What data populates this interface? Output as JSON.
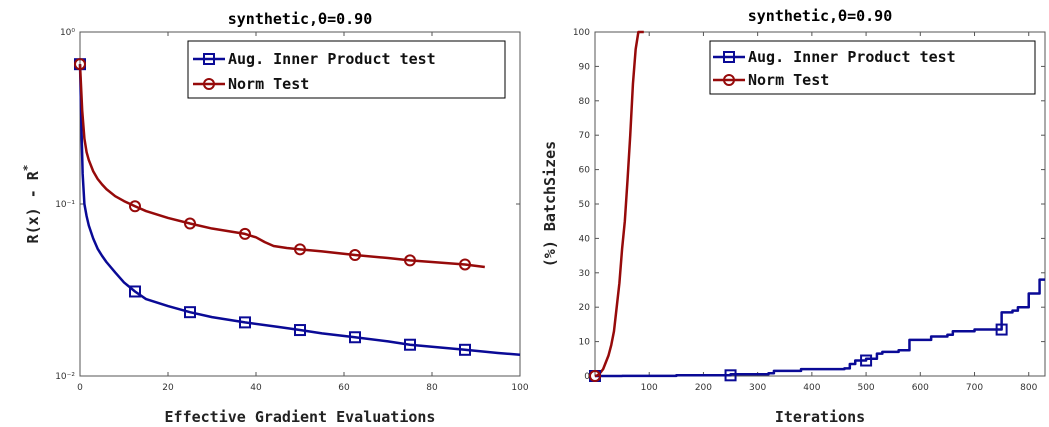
{
  "chart_data": [
    {
      "type": "line",
      "title": "synthetic,θ=0.90",
      "xlabel": "Effective Gradient Evaluations",
      "ylabel": "R(x) - R*",
      "xlim": [
        0,
        100
      ],
      "ylim": [
        0.01,
        1
      ],
      "yscale": "log",
      "xticks": [
        0,
        20,
        40,
        60,
        80,
        100
      ],
      "yticks": [
        0.01,
        0.1,
        1
      ],
      "ytick_labels": [
        "10⁻²",
        "10⁻¹",
        "10⁰"
      ],
      "grid": false,
      "legend_position": "top-right",
      "series": [
        {
          "name": "Aug. Inner Product test",
          "color": "#0a0a96",
          "marker": "square",
          "x": [
            0,
            0.3,
            0.6,
            1,
            1.5,
            2,
            3,
            4,
            5,
            6,
            8,
            10,
            12.5,
            15,
            20,
            25,
            30,
            37.5,
            45,
            50,
            55,
            62.5,
            70,
            75,
            80,
            87.5,
            95,
            100
          ],
          "y": [
            0.65,
            0.3,
            0.15,
            0.1,
            0.085,
            0.075,
            0.063,
            0.055,
            0.05,
            0.046,
            0.04,
            0.035,
            0.031,
            0.028,
            0.0255,
            0.0235,
            0.022,
            0.0205,
            0.0193,
            0.0185,
            0.0177,
            0.0168,
            0.0159,
            0.0152,
            0.0148,
            0.0142,
            0.0136,
            0.0133
          ],
          "marker_x": [
            0,
            12.5,
            25,
            37.5,
            50,
            62.5,
            75,
            87.5
          ]
        },
        {
          "name": "Norm Test",
          "color": "#960a0a",
          "marker": "circle",
          "x": [
            0,
            0.5,
            1,
            1.5,
            2,
            3,
            4,
            5,
            6,
            8,
            10,
            12.5,
            15,
            20,
            25,
            30,
            37.5,
            40,
            42,
            44,
            47,
            50,
            55,
            62.5,
            70,
            75,
            80,
            87.5,
            92
          ],
          "y": [
            0.65,
            0.35,
            0.24,
            0.2,
            0.18,
            0.155,
            0.14,
            0.13,
            0.122,
            0.111,
            0.104,
            0.097,
            0.091,
            0.083,
            0.077,
            0.072,
            0.067,
            0.064,
            0.06,
            0.057,
            0.0555,
            0.0545,
            0.053,
            0.0505,
            0.0485,
            0.047,
            0.046,
            0.0445,
            0.043
          ],
          "marker_x": [
            0,
            12.5,
            25,
            37.5,
            50,
            62.5,
            75,
            87.5
          ]
        }
      ]
    },
    {
      "type": "line",
      "title": "synthetic,θ=0.90",
      "xlabel": "Iterations",
      "ylabel": "(%) BatchSizes",
      "xlim": [
        0,
        830
      ],
      "ylim": [
        0,
        100
      ],
      "xticks": [
        100,
        200,
        300,
        400,
        500,
        600,
        700,
        800
      ],
      "yticks": [
        0,
        10,
        20,
        30,
        40,
        50,
        60,
        70,
        80,
        90,
        100
      ],
      "grid": false,
      "legend_position": "top-right",
      "series": [
        {
          "name": "Aug. Inner Product test",
          "color": "#0a0a96",
          "marker": "square",
          "step": true,
          "x": [
            0,
            50,
            150,
            250,
            320,
            330,
            380,
            460,
            470,
            480,
            490,
            500,
            520,
            530,
            560,
            580,
            600,
            620,
            650,
            660,
            680,
            700,
            720,
            750,
            770,
            780,
            800,
            820,
            830
          ],
          "y": [
            0,
            0.05,
            0.2,
            0.5,
            0.8,
            1.5,
            2,
            2.2,
            3.5,
            4.5,
            4.5,
            5,
            6.5,
            7,
            7.5,
            10.5,
            10.5,
            11.5,
            12,
            13,
            13,
            13.5,
            13.5,
            18.5,
            19,
            20,
            24,
            28,
            28
          ],
          "marker_x": [
            0,
            250,
            500,
            750
          ]
        },
        {
          "name": "Norm Test",
          "color": "#960a0a",
          "marker": "circle",
          "x": [
            0,
            5,
            10,
            15,
            20,
            25,
            30,
            35,
            40,
            45,
            50,
            55,
            60,
            65,
            70,
            75,
            80,
            85,
            90
          ],
          "y": [
            0,
            0.2,
            1,
            2,
            4,
            6,
            9,
            13,
            20,
            27,
            37,
            45,
            57,
            70,
            85,
            95,
            100,
            100,
            100
          ],
          "marker_x": [
            0
          ]
        }
      ]
    }
  ]
}
